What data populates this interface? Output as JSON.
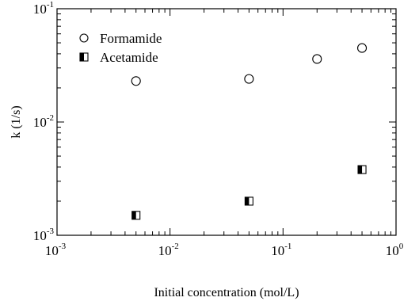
{
  "chart_data": {
    "type": "scatter",
    "title": "",
    "xlabel": "Initial concentration (mol/L)",
    "ylabel": "k (1/s)",
    "xscale": "log",
    "yscale": "log",
    "xlim": [
      0.001,
      1
    ],
    "ylim": [
      0.001,
      0.1
    ],
    "x_ticks": [
      {
        "base": "10",
        "exp": "-3",
        "value": 0.001
      },
      {
        "base": "10",
        "exp": "-2",
        "value": 0.01
      },
      {
        "base": "10",
        "exp": "-1",
        "value": 0.1
      },
      {
        "base": "10",
        "exp": "0",
        "value": 1
      }
    ],
    "y_ticks": [
      {
        "base": "10",
        "exp": "-3",
        "value": 0.001
      },
      {
        "base": "10",
        "exp": "-2",
        "value": 0.01
      },
      {
        "base": "10",
        "exp": "-1",
        "value": 0.1
      }
    ],
    "grid": false,
    "legend_position": "top-left",
    "series": [
      {
        "name": "Formamide",
        "marker": "open-circle",
        "color": "#000000",
        "x": [
          0.005,
          0.05,
          0.2,
          0.5
        ],
        "y": [
          0.023,
          0.024,
          0.036,
          0.045
        ]
      },
      {
        "name": "Acetamide",
        "marker": "half-filled-square",
        "color": "#000000",
        "x": [
          0.005,
          0.05,
          0.5
        ],
        "y": [
          0.0015,
          0.002,
          0.0038
        ]
      }
    ]
  }
}
